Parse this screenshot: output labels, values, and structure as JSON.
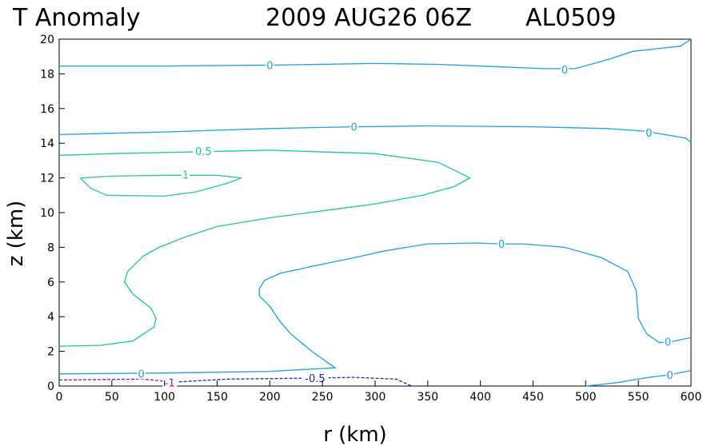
{
  "title": {
    "field": "T Anomaly",
    "datetime": "2009 AUG26 06Z",
    "storm": "AL0509"
  },
  "chart_data": {
    "type": "contour",
    "xlabel": "r (km)",
    "ylabel": "z (km)",
    "xlim": [
      0,
      600
    ],
    "ylim": [
      0,
      20
    ],
    "x_ticks": [
      0,
      50,
      100,
      150,
      200,
      250,
      300,
      350,
      400,
      450,
      500,
      550,
      600
    ],
    "y_ticks": [
      0,
      2,
      4,
      6,
      8,
      10,
      12,
      14,
      16,
      18,
      20
    ],
    "grid": false,
    "colors": {
      "level_0": "#1aa0e6",
      "level_0_5": "#14c8a0",
      "level_1": "#28c896",
      "level_neg_0_5": "#2020d0",
      "level_neg_1": "#8c1aa0"
    },
    "contours": [
      {
        "level": 0,
        "label": "0",
        "color": "#1aa0e6",
        "dashed": false,
        "points": [
          [
            0,
            18.45
          ],
          [
            100,
            18.45
          ],
          [
            200,
            18.5
          ],
          [
            300,
            18.6
          ],
          [
            360,
            18.55
          ],
          [
            420,
            18.4
          ],
          [
            460,
            18.3
          ],
          [
            490,
            18.3
          ],
          [
            520,
            18.8
          ],
          [
            545,
            19.3
          ],
          [
            575,
            19.5
          ],
          [
            590,
            19.6
          ],
          [
            600,
            20
          ]
        ],
        "labels": [
          {
            "x": 200,
            "y": 18.5
          },
          {
            "x": 480,
            "y": 18.25
          }
        ]
      },
      {
        "level": 0,
        "label": "0",
        "color": "#1aa0e6",
        "dashed": false,
        "points": [
          [
            0,
            14.5
          ],
          [
            100,
            14.65
          ],
          [
            200,
            14.85
          ],
          [
            280,
            14.95
          ],
          [
            350,
            15.0
          ],
          [
            450,
            14.95
          ],
          [
            520,
            14.85
          ],
          [
            555,
            14.7
          ],
          [
            575,
            14.5
          ],
          [
            595,
            14.3
          ],
          [
            600,
            14.05
          ]
        ],
        "labels": [
          {
            "x": 280,
            "y": 14.95
          },
          {
            "x": 560,
            "y": 14.6
          }
        ]
      },
      {
        "level": 0,
        "label": "0",
        "color": "#1aa0e6",
        "dashed": false,
        "points": [
          [
            600,
            2.8
          ],
          [
            585,
            2.6
          ],
          [
            570,
            2.5
          ],
          [
            558,
            3.0
          ],
          [
            550,
            3.9
          ],
          [
            548,
            5.5
          ],
          [
            540,
            6.6
          ],
          [
            515,
            7.4
          ],
          [
            480,
            8.0
          ],
          [
            440,
            8.2
          ],
          [
            420,
            8.2
          ],
          [
            395,
            8.25
          ],
          [
            350,
            8.2
          ],
          [
            310,
            7.8
          ],
          [
            280,
            7.4
          ],
          [
            240,
            6.9
          ],
          [
            210,
            6.5
          ],
          [
            195,
            6.1
          ],
          [
            190,
            5.6
          ],
          [
            190,
            5.2
          ],
          [
            200,
            4.6
          ],
          [
            210,
            3.7
          ],
          [
            220,
            3.0
          ],
          [
            240,
            2.0
          ],
          [
            262,
            1.05
          ],
          [
            200,
            0.85
          ],
          [
            100,
            0.75
          ],
          [
            0,
            0.7
          ]
        ],
        "labels": [
          {
            "x": 420,
            "y": 8.2
          },
          {
            "x": 578,
            "y": 2.55
          },
          {
            "x": 78,
            "y": 0.72
          }
        ]
      },
      {
        "level": 0,
        "label": "0",
        "color": "#1aa0e6",
        "dashed": false,
        "points": [
          [
            500,
            0
          ],
          [
            530,
            0.2
          ],
          [
            560,
            0.5
          ],
          [
            580,
            0.65
          ],
          [
            600,
            0.9
          ]
        ],
        "labels": [
          {
            "x": 580,
            "y": 0.65
          }
        ]
      },
      {
        "level": 0.5,
        "label": "0.5",
        "color": "#14c8a0",
        "dashed": false,
        "points": [
          [
            0,
            2.3
          ],
          [
            40,
            2.35
          ],
          [
            70,
            2.6
          ],
          [
            90,
            3.4
          ],
          [
            92,
            3.9
          ],
          [
            87,
            4.5
          ],
          [
            70,
            5.3
          ],
          [
            62,
            6.0
          ],
          [
            65,
            6.6
          ],
          [
            80,
            7.5
          ],
          [
            95,
            8.0
          ],
          [
            120,
            8.6
          ],
          [
            150,
            9.2
          ],
          [
            200,
            9.7
          ],
          [
            250,
            10.1
          ],
          [
            300,
            10.5
          ],
          [
            345,
            11.0
          ],
          [
            375,
            11.5
          ],
          [
            390,
            12.0
          ],
          [
            360,
            12.9
          ],
          [
            300,
            13.4
          ],
          [
            200,
            13.6
          ],
          [
            130,
            13.5
          ],
          [
            50,
            13.4
          ],
          [
            0,
            13.3
          ]
        ],
        "labels": [
          {
            "x": 137,
            "y": 13.55
          }
        ]
      },
      {
        "level": 1.0,
        "label": "1",
        "color": "#28c896",
        "dashed": false,
        "points": [
          [
            20,
            12.0
          ],
          [
            30,
            11.4
          ],
          [
            45,
            11.0
          ],
          [
            100,
            10.95
          ],
          [
            130,
            11.2
          ],
          [
            160,
            11.7
          ],
          [
            173,
            12.0
          ],
          [
            150,
            12.15
          ],
          [
            100,
            12.15
          ],
          [
            50,
            12.1
          ],
          [
            20,
            12.0
          ]
        ],
        "labels": [
          {
            "x": 120,
            "y": 12.2
          }
        ]
      },
      {
        "level": -0.5,
        "label": "-0.5",
        "color": "#2020d0",
        "dashed": true,
        "points": [
          [
            100,
            0.2
          ],
          [
            160,
            0.4
          ],
          [
            230,
            0.45
          ],
          [
            280,
            0.5
          ],
          [
            320,
            0.4
          ],
          [
            335,
            0.0
          ]
        ],
        "labels": [
          {
            "x": 243,
            "y": 0.45
          }
        ]
      },
      {
        "level": -1.0,
        "label": "-1",
        "color": "#8c1aa0",
        "dashed": true,
        "points": [
          [
            0,
            0.35
          ],
          [
            80,
            0.4
          ],
          [
            105,
            0.25
          ]
        ],
        "labels": [
          {
            "x": 105,
            "y": 0.2
          }
        ]
      }
    ]
  }
}
